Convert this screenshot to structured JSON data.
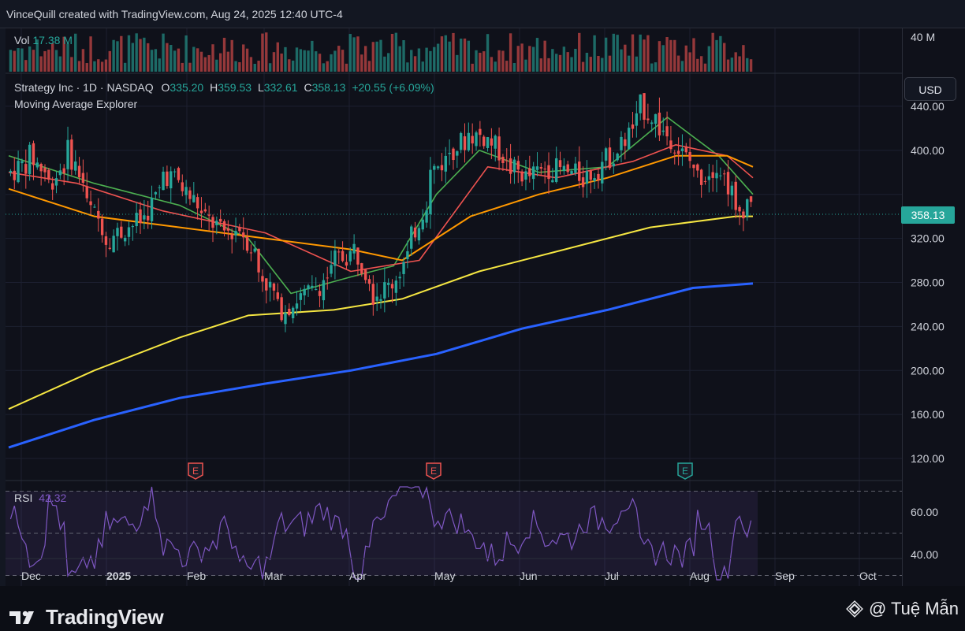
{
  "header": {
    "attribution": "VinceQuill created with TradingView.com, Aug 24, 2025 12:40 UTC-4"
  },
  "volume_pane": {
    "label": "Vol",
    "value": "17.38 M",
    "axis_label": "40 M"
  },
  "legend": {
    "symbol": "Strategy Inc · 1D · NASDAQ",
    "o_label": "O",
    "o_value": "335.20",
    "h_label": "H",
    "h_value": "359.53",
    "l_label": "L",
    "l_value": "332.61",
    "c_label": "C",
    "c_value": "358.13",
    "change": "+20.55 (+6.09%)",
    "indicator": "Moving Average Explorer"
  },
  "currency_button": "USD",
  "last_price_tag": "358.13",
  "rsi_pane": {
    "label": "RSI",
    "value": "42.32"
  },
  "earnings_markers": [
    "E",
    "E",
    "E"
  ],
  "footer": {
    "brand": "TradingView",
    "credit": "@ Tuệ Mẫn"
  },
  "colors": {
    "up": "#26a69a",
    "down": "#ef5350",
    "ma_fast": "#4caf50",
    "ma_red": "#ef5350",
    "ma_orange": "#ff9800",
    "ma_yellow": "#f5e642",
    "ma_blue": "#2962ff",
    "rsi": "#7e57c2"
  },
  "chart_data": {
    "type": "candlestick",
    "price_axis": {
      "ticks": [
        120,
        160,
        200,
        240,
        280,
        320,
        360,
        400,
        440
      ],
      "tick_labels": [
        "120.00",
        "160.00",
        "200.00",
        "240.00",
        "280.00",
        "320.00",
        "358.13",
        "400.00",
        "440.00"
      ],
      "ylim": [
        100,
        470
      ]
    },
    "rsi_axis": {
      "ticks": [
        40,
        60
      ],
      "tick_labels": [
        "40.00",
        "60.00"
      ],
      "band": [
        30,
        70
      ],
      "ylim": [
        25,
        75
      ]
    },
    "x_labels": [
      "Dec",
      "2025",
      "Feb",
      "Mar",
      "Apr",
      "May",
      "Jun",
      "Jul",
      "Aug",
      "Sep",
      "Oct"
    ],
    "anchors": [
      {
        "date": "2024-11-25",
        "price": 380
      },
      {
        "date": "2024-12-02",
        "price": 395
      },
      {
        "date": "2024-12-09",
        "price": 370
      },
      {
        "date": "2024-12-16",
        "price": 400
      },
      {
        "date": "2024-12-23",
        "price": 350
      },
      {
        "date": "2024-12-30",
        "price": 320
      },
      {
        "date": "2025-01-06",
        "price": 330
      },
      {
        "date": "2025-01-13",
        "price": 340
      },
      {
        "date": "2025-01-20",
        "price": 380
      },
      {
        "date": "2025-01-27",
        "price": 365
      },
      {
        "date": "2025-02-03",
        "price": 340
      },
      {
        "date": "2025-02-10",
        "price": 325
      },
      {
        "date": "2025-02-17",
        "price": 330
      },
      {
        "date": "2025-02-24",
        "price": 290
      },
      {
        "date": "2025-03-03",
        "price": 255
      },
      {
        "date": "2025-03-10",
        "price": 265
      },
      {
        "date": "2025-03-17",
        "price": 275
      },
      {
        "date": "2025-03-24",
        "price": 300
      },
      {
        "date": "2025-03-31",
        "price": 310
      },
      {
        "date": "2025-04-07",
        "price": 270
      },
      {
        "date": "2025-04-14",
        "price": 280
      },
      {
        "date": "2025-04-21",
        "price": 320
      },
      {
        "date": "2025-04-28",
        "price": 380
      },
      {
        "date": "2025-05-05",
        "price": 400
      },
      {
        "date": "2025-05-12",
        "price": 415
      },
      {
        "date": "2025-05-19",
        "price": 410
      },
      {
        "date": "2025-05-26",
        "price": 385
      },
      {
        "date": "2025-06-02",
        "price": 375
      },
      {
        "date": "2025-06-09",
        "price": 385
      },
      {
        "date": "2025-06-16",
        "price": 380
      },
      {
        "date": "2025-06-23",
        "price": 375
      },
      {
        "date": "2025-06-30",
        "price": 390
      },
      {
        "date": "2025-07-07",
        "price": 405
      },
      {
        "date": "2025-07-14",
        "price": 440
      },
      {
        "date": "2025-07-21",
        "price": 420
      },
      {
        "date": "2025-07-28",
        "price": 400
      },
      {
        "date": "2025-08-04",
        "price": 375
      },
      {
        "date": "2025-08-11",
        "price": 390
      },
      {
        "date": "2025-08-18",
        "price": 340
      },
      {
        "date": "2025-08-22",
        "price": 358
      }
    ],
    "series": [
      {
        "name": "MA fast",
        "values": [
          [
            0,
            395
          ],
          [
            0.1,
            370
          ],
          [
            0.2,
            350
          ],
          [
            0.28,
            320
          ],
          [
            0.33,
            270
          ],
          [
            0.4,
            285
          ],
          [
            0.45,
            295
          ],
          [
            0.5,
            360
          ],
          [
            0.55,
            400
          ],
          [
            0.62,
            380
          ],
          [
            0.7,
            385
          ],
          [
            0.77,
            430
          ],
          [
            0.83,
            395
          ],
          [
            0.87,
            360
          ]
        ]
      },
      {
        "name": "MA red",
        "values": [
          [
            0,
            380
          ],
          [
            0.08,
            370
          ],
          [
            0.18,
            345
          ],
          [
            0.3,
            325
          ],
          [
            0.4,
            290
          ],
          [
            0.48,
            300
          ],
          [
            0.56,
            385
          ],
          [
            0.64,
            375
          ],
          [
            0.73,
            390
          ],
          [
            0.78,
            405
          ],
          [
            0.84,
            395
          ],
          [
            0.87,
            375
          ]
        ]
      },
      {
        "name": "MA orange",
        "values": [
          [
            0,
            365
          ],
          [
            0.1,
            340
          ],
          [
            0.2,
            330
          ],
          [
            0.3,
            320
          ],
          [
            0.4,
            310
          ],
          [
            0.46,
            300
          ],
          [
            0.54,
            340
          ],
          [
            0.62,
            360
          ],
          [
            0.7,
            375
          ],
          [
            0.78,
            395
          ],
          [
            0.84,
            395
          ],
          [
            0.87,
            385
          ]
        ]
      },
      {
        "name": "MA yellow",
        "values": [
          [
            0,
            165
          ],
          [
            0.1,
            200
          ],
          [
            0.2,
            230
          ],
          [
            0.28,
            250
          ],
          [
            0.38,
            255
          ],
          [
            0.46,
            265
          ],
          [
            0.55,
            290
          ],
          [
            0.65,
            310
          ],
          [
            0.75,
            330
          ],
          [
            0.85,
            340
          ],
          [
            0.87,
            340
          ]
        ]
      },
      {
        "name": "MA blue",
        "values": [
          [
            0,
            130
          ],
          [
            0.1,
            155
          ],
          [
            0.2,
            175
          ],
          [
            0.3,
            188
          ],
          [
            0.4,
            200
          ],
          [
            0.5,
            215
          ],
          [
            0.6,
            238
          ],
          [
            0.7,
            255
          ],
          [
            0.8,
            275
          ],
          [
            0.87,
            279
          ]
        ]
      }
    ]
  }
}
